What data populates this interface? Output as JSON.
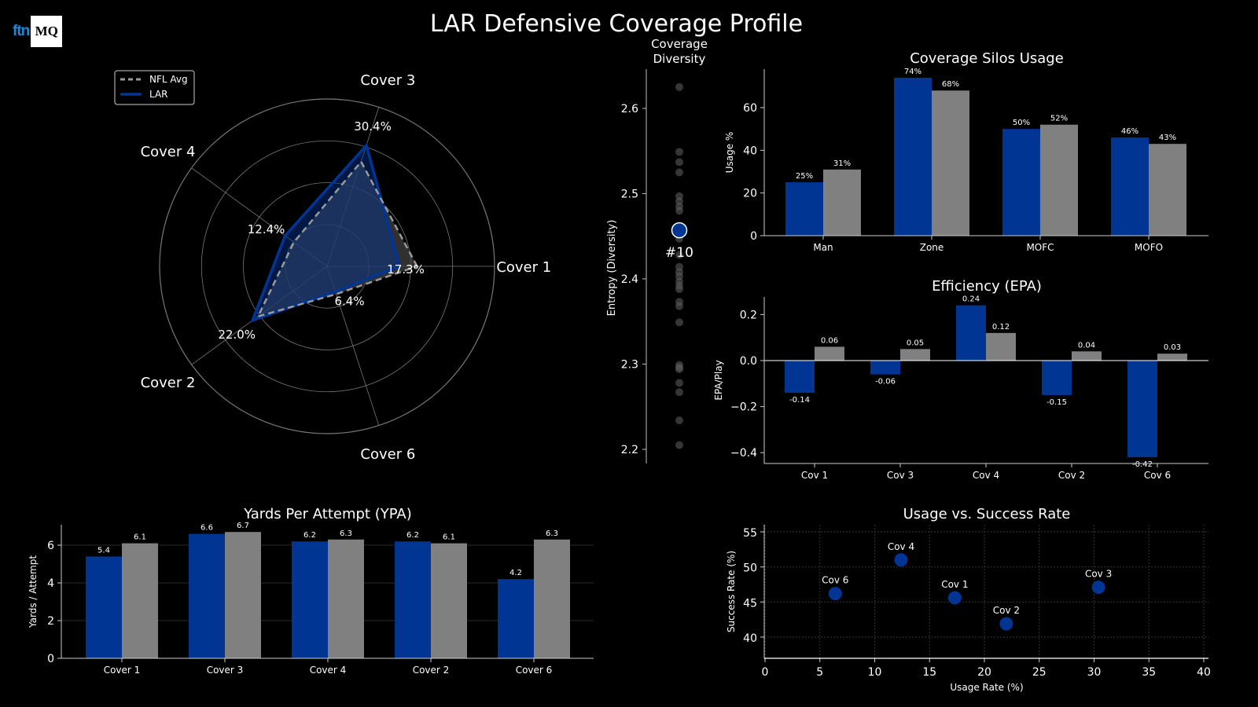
{
  "title": "LAR Defensive Coverage Profile",
  "logo": {
    "left": "ftn",
    "right": "MQ"
  },
  "colors": {
    "lar": "#003594",
    "nfl": "#808080",
    "background": "#000000"
  },
  "chart_data": [
    {
      "type": "radar",
      "axes": [
        "Cover 1",
        "Cover 3",
        "Cover 4",
        "Cover 2",
        "Cover 6"
      ],
      "rmax": 40,
      "rings": [
        10,
        20,
        30,
        40
      ],
      "legend": {
        "placement": "top-left",
        "entries": [
          "NFL Avg",
          "LAR"
        ]
      },
      "series": [
        {
          "name": "NFL Avg",
          "values": [
            21.5,
            26.3,
            9.8,
            20.4,
            7.0
          ]
        },
        {
          "name": "LAR",
          "values": [
            17.3,
            30.4,
            12.4,
            22.0,
            6.4
          ],
          "labels": [
            "17.3%",
            "30.4%",
            "12.4%",
            "22.0%",
            "6.4%"
          ]
        }
      ]
    },
    {
      "type": "scatter",
      "title": "Coverage\nDiversity",
      "title_lines": [
        "Coverage",
        "Diversity"
      ],
      "ylabel": "Entropy (Diversity)",
      "ylim": [
        2.19,
        2.645
      ],
      "yticks": [
        "2.2",
        "2.3",
        "2.4",
        "2.5",
        "2.6"
      ],
      "league_values": [
        2.625,
        2.549,
        2.537,
        2.525,
        2.497,
        2.491,
        2.485,
        2.48,
        2.447,
        2.428,
        2.414,
        2.408,
        2.403,
        2.397,
        2.392,
        2.388,
        2.373,
        2.368,
        2.349,
        2.299,
        2.296,
        2.294,
        2.278,
        2.267,
        2.234,
        2.205
      ],
      "highlight": {
        "team": "LAR",
        "value": 2.457,
        "label": "#10"
      }
    },
    {
      "type": "bar",
      "title": "Coverage Silos Usage",
      "ylabel": "Usage %",
      "ylim": [
        0,
        78
      ],
      "yticks": [
        "0",
        "20",
        "40",
        "60"
      ],
      "categories": [
        "Man",
        "Zone",
        "MOFC",
        "MOFO"
      ],
      "series": [
        {
          "name": "LAR",
          "values": [
            25,
            74,
            50,
            46
          ],
          "labels": [
            "25%",
            "74%",
            "50%",
            "46%"
          ]
        },
        {
          "name": "NFL Avg",
          "values": [
            31,
            68,
            52,
            43
          ],
          "labels": [
            "31%",
            "68%",
            "52%",
            "43%"
          ]
        }
      ]
    },
    {
      "type": "bar",
      "title": "Efficiency (EPA)",
      "ylabel": "EPA/Play",
      "ylim": [
        -0.45,
        0.27
      ],
      "yticks": [
        "−0.4",
        "−0.2",
        "0.0",
        "0.2"
      ],
      "categories": [
        "Cov 1",
        "Cov 3",
        "Cov 4",
        "Cov 2",
        "Cov 6"
      ],
      "series": [
        {
          "name": "LAR",
          "values": [
            -0.14,
            -0.06,
            0.24,
            -0.15,
            -0.42
          ],
          "labels": [
            "-0.14",
            "-0.06",
            "0.24",
            "-0.15",
            "-0.42"
          ]
        },
        {
          "name": "NFL Avg",
          "values": [
            0.06,
            0.05,
            0.12,
            0.04,
            0.03
          ],
          "labels": [
            "0.06",
            "0.05",
            "0.12",
            "0.04",
            "0.03"
          ]
        }
      ]
    },
    {
      "type": "bar",
      "title": "Yards Per Attempt (YPA)",
      "ylabel": "Yards / Attempt",
      "ylim": [
        0,
        7.1
      ],
      "yticks": [
        "0",
        "2",
        "4",
        "6"
      ],
      "grid": true,
      "categories": [
        "Cover 1",
        "Cover 3",
        "Cover 4",
        "Cover 2",
        "Cover 6"
      ],
      "series": [
        {
          "name": "LAR",
          "values": [
            5.4,
            6.6,
            6.2,
            6.2,
            4.2
          ],
          "labels": [
            "5.4",
            "6.6",
            "6.2",
            "6.2",
            "4.2"
          ]
        },
        {
          "name": "NFL Avg",
          "values": [
            6.1,
            6.7,
            6.3,
            6.1,
            6.3
          ],
          "labels": [
            "6.1",
            "6.7",
            "6.3",
            "6.1",
            "6.3"
          ]
        }
      ]
    },
    {
      "type": "scatter",
      "title": "Usage vs. Success Rate",
      "xlabel": "Usage Rate (%)",
      "ylabel": "Success Rate (%)",
      "xlim": [
        0,
        40
      ],
      "ylim": [
        37,
        56
      ],
      "xticks": [
        "0",
        "5",
        "10",
        "15",
        "20",
        "25",
        "30",
        "35",
        "40"
      ],
      "yticks": [
        "40",
        "45",
        "50",
        "55"
      ],
      "grid": true,
      "points": [
        {
          "label": "Cov 1",
          "x": 17.3,
          "y": 45.6
        },
        {
          "label": "Cov 3",
          "x": 30.4,
          "y": 47.1
        },
        {
          "label": "Cov 4",
          "x": 12.4,
          "y": 51.0
        },
        {
          "label": "Cov 2",
          "x": 22.0,
          "y": 41.9
        },
        {
          "label": "Cov 6",
          "x": 6.4,
          "y": 46.2
        }
      ]
    }
  ]
}
